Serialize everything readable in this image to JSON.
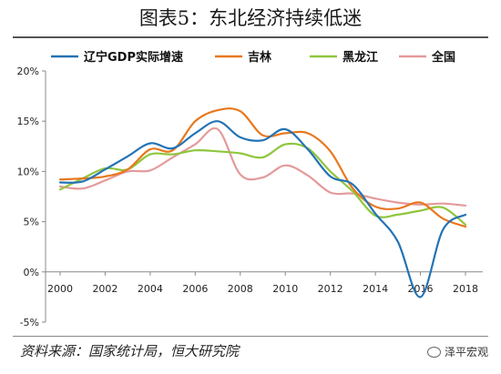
{
  "header": {
    "title": "图表5：东北经济持续低迷"
  },
  "footer": {
    "source": "资料来源：国家统计局，恒大研究院",
    "watermark": "泽平宏观"
  },
  "chart_data": {
    "type": "line",
    "title": "图表5：东北经济持续低迷",
    "xlabel": "",
    "ylabel": "",
    "x": [
      2000,
      2001,
      2002,
      2003,
      2004,
      2005,
      2006,
      2007,
      2008,
      2009,
      2010,
      2011,
      2012,
      2013,
      2014,
      2015,
      2016,
      2017,
      2018
    ],
    "x_ticks": [
      "2000",
      "2002",
      "2004",
      "2006",
      "2008",
      "2010",
      "2012",
      "2014",
      "2016",
      "2018"
    ],
    "y_ticks": [
      "-5%",
      "0%",
      "5%",
      "10%",
      "15%",
      "20%"
    ],
    "ylim": [
      -5,
      20
    ],
    "grid": false,
    "legend_position": "top",
    "series": [
      {
        "name": "辽宁GDP实际增速",
        "color": "#2473b5",
        "values": [
          8.9,
          9.0,
          10.2,
          11.5,
          12.8,
          12.3,
          13.8,
          15.0,
          13.4,
          13.1,
          14.2,
          12.2,
          9.5,
          8.7,
          5.8,
          3.0,
          -2.5,
          4.2,
          5.7
        ]
      },
      {
        "name": "吉林",
        "color": "#e8781e",
        "values": [
          9.2,
          9.3,
          9.5,
          10.2,
          12.2,
          12.1,
          15.0,
          16.1,
          16.0,
          13.6,
          13.8,
          13.8,
          12.0,
          8.3,
          6.5,
          6.3,
          6.9,
          5.3,
          4.5
        ]
      },
      {
        "name": "黑龙江",
        "color": "#8fc63e",
        "values": [
          8.2,
          9.3,
          10.3,
          10.2,
          11.7,
          11.7,
          12.1,
          12.0,
          11.8,
          11.4,
          12.7,
          12.3,
          10.0,
          8.0,
          5.6,
          5.7,
          6.1,
          6.4,
          4.7
        ]
      },
      {
        "name": "全国",
        "color": "#e49a9a",
        "values": [
          8.5,
          8.3,
          9.1,
          10.0,
          10.1,
          11.4,
          12.7,
          14.2,
          9.7,
          9.4,
          10.6,
          9.6,
          7.9,
          7.8,
          7.3,
          6.9,
          6.7,
          6.8,
          6.6
        ]
      }
    ]
  }
}
